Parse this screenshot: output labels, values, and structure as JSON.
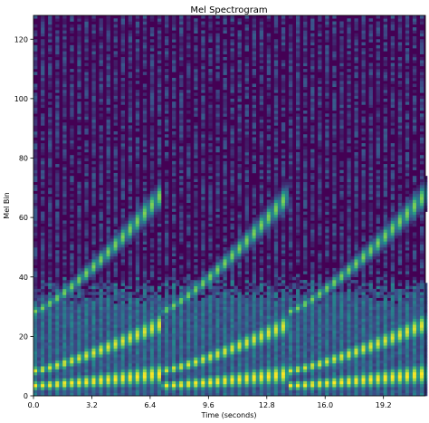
{
  "chart_data": {
    "type": "heatmap",
    "title": "Mel Spectrogram",
    "xlabel": "Time (seconds)",
    "ylabel": "Mel Bin",
    "xlim": [
      0,
      21.5
    ],
    "ylim": [
      0,
      128
    ],
    "x_ticks": [
      0.0,
      3.2,
      6.4,
      9.6,
      12.8,
      16.0,
      19.2
    ],
    "x_tick_labels": [
      "0.0",
      "3.2",
      "6.4",
      "9.6",
      "12.8",
      "16.0",
      "19.2"
    ],
    "y_ticks": [
      0,
      20,
      40,
      60,
      80,
      100,
      120
    ],
    "y_tick_labels": [
      "0",
      "20",
      "40",
      "60",
      "80",
      "100",
      "120"
    ],
    "colormap": "viridis",
    "background_color": "#440154",
    "grid": false,
    "chirp_segments": [
      {
        "t_start": 0.0,
        "t_end": 7.0
      },
      {
        "t_start": 7.0,
        "t_end": 14.0
      },
      {
        "t_start": 14.0,
        "t_end": 21.5
      }
    ],
    "harmonics": [
      {
        "bin_start": 3,
        "bin_end": 7,
        "intensity": 1.0
      },
      {
        "bin_start": 8,
        "bin_end": 24,
        "intensity": 0.95
      },
      {
        "bin_start": 28,
        "bin_end": 68,
        "intensity": 0.8
      }
    ],
    "frame_interval_s": 0.2,
    "noise_floor_bins": 40
  }
}
